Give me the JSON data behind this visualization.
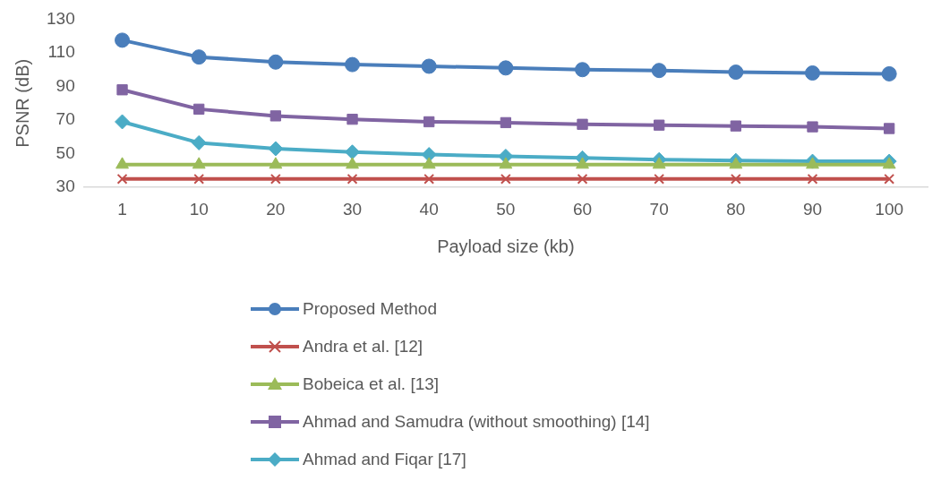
{
  "chart_data": {
    "type": "line",
    "xlabel": "Payload size (kb)",
    "ylabel": "PSNR (dB)",
    "categories": [
      "1",
      "10",
      "20",
      "30",
      "40",
      "50",
      "60",
      "70",
      "80",
      "90",
      "100"
    ],
    "ylim": [
      30,
      130
    ],
    "yticks": [
      30,
      50,
      70,
      90,
      110,
      130
    ],
    "grid": false,
    "legend": "bottom",
    "series": [
      {
        "name": "Proposed Method",
        "color": "#4a7ebb",
        "marker": "circle",
        "values": [
          117.5,
          107.5,
          104.5,
          103,
          102,
          101,
          100,
          99.5,
          98.5,
          98,
          97.5
        ]
      },
      {
        "name": "Andra et al. [12]",
        "color": "#c0504d",
        "marker": "cross",
        "values": [
          35,
          35,
          35,
          35,
          35,
          35,
          35,
          35,
          35,
          35,
          35
        ]
      },
      {
        "name": "Bobeica et al. [13]",
        "color": "#9bbb59",
        "marker": "triangle",
        "values": [
          43.5,
          43.5,
          43.5,
          43.5,
          43.5,
          43.5,
          43.5,
          43.5,
          43.5,
          43.5,
          43.5
        ]
      },
      {
        "name": "Ahmad and Samudra (without smoothing) [14]",
        "color": "#8064a2",
        "marker": "square",
        "values": [
          88,
          76.5,
          72.5,
          70.5,
          69,
          68.5,
          67.5,
          67,
          66.5,
          66,
          65
        ]
      },
      {
        "name": "Ahmad and Fiqar [17]",
        "color": "#4bacc6",
        "marker": "diamond",
        "values": [
          69,
          56.5,
          53,
          51,
          49.5,
          48.5,
          47.5,
          46.5,
          46,
          45.5,
          45.5
        ]
      }
    ]
  }
}
